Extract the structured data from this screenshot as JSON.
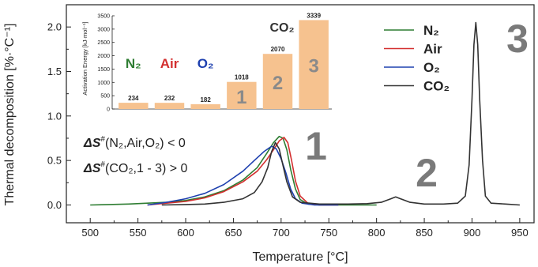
{
  "chart_data": [
    {
      "type": "line",
      "xlabel": "Temperature [°C]",
      "ylabel": "Thermal decomposition [%·°C⁻¹]",
      "xlim": [
        475,
        965
      ],
      "ylim": [
        -0.2,
        2.25
      ],
      "xticks": [
        500,
        550,
        600,
        650,
        700,
        750,
        800,
        850,
        900,
        950
      ],
      "yticks": [
        0.0,
        0.5,
        1.0,
        1.5,
        2.0
      ],
      "ytick_labels": [
        "0.0",
        "0.5",
        "1.0",
        "1.5",
        "2.0"
      ],
      "legend_position": "top-right",
      "series": [
        {
          "name": "N₂",
          "color": "#2e7d32",
          "points": [
            [
              500,
              0.0
            ],
            [
              520,
              0.005
            ],
            [
              540,
              0.01
            ],
            [
              560,
              0.02
            ],
            [
              580,
              0.03
            ],
            [
              600,
              0.05
            ],
            [
              620,
              0.09
            ],
            [
              640,
              0.16
            ],
            [
              660,
              0.28
            ],
            [
              675,
              0.42
            ],
            [
              685,
              0.58
            ],
            [
              692,
              0.7
            ],
            [
              698,
              0.77
            ],
            [
              702,
              0.75
            ],
            [
              706,
              0.62
            ],
            [
              710,
              0.4
            ],
            [
              715,
              0.18
            ],
            [
              720,
              0.06
            ],
            [
              728,
              0.01
            ],
            [
              740,
              0.0
            ],
            [
              800,
              0.0
            ]
          ]
        },
        {
          "name": "Air",
          "color": "#d32f2f",
          "points": [
            [
              560,
              0.0
            ],
            [
              580,
              0.02
            ],
            [
              600,
              0.04
            ],
            [
              620,
              0.08
            ],
            [
              640,
              0.15
            ],
            [
              660,
              0.26
            ],
            [
              675,
              0.38
            ],
            [
              685,
              0.51
            ],
            [
              692,
              0.62
            ],
            [
              698,
              0.72
            ],
            [
              703,
              0.76
            ],
            [
              707,
              0.7
            ],
            [
              711,
              0.5
            ],
            [
              715,
              0.27
            ],
            [
              720,
              0.1
            ],
            [
              728,
              0.02
            ],
            [
              740,
              0.0
            ],
            [
              760,
              0.0
            ]
          ]
        },
        {
          "name": "O₂",
          "color": "#1e40af",
          "points": [
            [
              560,
              0.0
            ],
            [
              580,
              0.03
            ],
            [
              600,
              0.07
            ],
            [
              620,
              0.13
            ],
            [
              640,
              0.23
            ],
            [
              660,
              0.38
            ],
            [
              672,
              0.5
            ],
            [
              682,
              0.6
            ],
            [
              690,
              0.66
            ],
            [
              695,
              0.63
            ],
            [
              700,
              0.52
            ],
            [
              705,
              0.36
            ],
            [
              710,
              0.18
            ],
            [
              715,
              0.07
            ],
            [
              722,
              0.02
            ],
            [
              735,
              0.0
            ],
            [
              760,
              0.0
            ]
          ]
        },
        {
          "name": "CO₂",
          "color": "#333333",
          "points": [
            [
              575,
              0.0
            ],
            [
              600,
              0.005
            ],
            [
              620,
              0.01
            ],
            [
              640,
              0.03
            ],
            [
              660,
              0.07
            ],
            [
              672,
              0.14
            ],
            [
              680,
              0.26
            ],
            [
              686,
              0.42
            ],
            [
              690,
              0.6
            ],
            [
              694,
              0.7
            ],
            [
              698,
              0.63
            ],
            [
              702,
              0.44
            ],
            [
              706,
              0.26
            ],
            [
              712,
              0.09
            ],
            [
              720,
              0.03
            ],
            [
              740,
              0.01
            ],
            [
              770,
              0.01
            ],
            [
              790,
              0.015
            ],
            [
              805,
              0.03
            ],
            [
              815,
              0.07
            ],
            [
              820,
              0.09
            ],
            [
              825,
              0.07
            ],
            [
              835,
              0.03
            ],
            [
              850,
              0.01
            ],
            [
              870,
              0.01
            ],
            [
              885,
              0.02
            ],
            [
              893,
              0.1
            ],
            [
              897,
              0.45
            ],
            [
              900,
              1.2
            ],
            [
              902,
              1.8
            ],
            [
              904,
              2.05
            ],
            [
              906,
              1.8
            ],
            [
              908,
              1.2
            ],
            [
              911,
              0.5
            ],
            [
              914,
              0.1
            ],
            [
              920,
              0.02
            ],
            [
              935,
              0.01
            ],
            [
              950,
              0.0
            ]
          ]
        }
      ],
      "annotations": {
        "big_1": "1",
        "big_2": "2",
        "big_3": "3",
        "entropy_line1": {
          "delta": "ΔS",
          "sup": "#",
          "args": "(N₂,Air,O₂) < 0"
        },
        "entropy_line2": {
          "delta": "ΔS",
          "sup": "#",
          "args": "(CO₂,1 - 3) > 0"
        }
      }
    },
    {
      "type": "bar",
      "ylabel": "Activation Energy [kJ·mol⁻¹]",
      "ylim": [
        0,
        3500
      ],
      "yticks": [
        0,
        500,
        1000,
        1500,
        2000,
        2500,
        3000,
        3500
      ],
      "categories": [
        "N₂",
        "Air",
        "O₂",
        "1",
        "2",
        "3"
      ],
      "values": [
        234,
        232,
        182,
        1018,
        2070,
        3339
      ],
      "bar_color": "#f6c28f",
      "group_labels": [
        {
          "text": "N₂",
          "color": "#2e7d32"
        },
        {
          "text": "Air",
          "color": "#d32f2f"
        },
        {
          "text": "O₂",
          "color": "#1e40af"
        }
      ],
      "group_title": "CO₂"
    }
  ]
}
